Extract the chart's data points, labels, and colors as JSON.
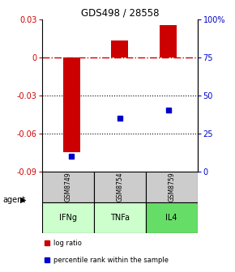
{
  "title": "GDS498 / 28558",
  "samples": [
    "GSM8749",
    "GSM8754",
    "GSM8759"
  ],
  "agents": [
    "IFNg",
    "TNFa",
    "IL4"
  ],
  "log_ratios": [
    -0.075,
    0.013,
    0.025
  ],
  "percentile_ranks": [
    10,
    35,
    40
  ],
  "ylim_left": [
    -0.09,
    0.03
  ],
  "ylim_right": [
    0,
    100
  ],
  "left_yticks": [
    0.03,
    0,
    -0.03,
    -0.06,
    -0.09
  ],
  "left_ytick_labels": [
    "0.03",
    "0",
    "-0.03",
    "-0.06",
    "-0.09"
  ],
  "right_yticks": [
    100,
    75,
    50,
    25,
    0
  ],
  "right_ytick_labels": [
    "100%",
    "75",
    "50",
    "25",
    "0"
  ],
  "bar_color": "#cc0000",
  "square_color": "#0000cc",
  "zero_line_color": "#cc0000",
  "grid_color": "#000000",
  "sample_bg": "#cccccc",
  "agent_colors": [
    "#ccffcc",
    "#ccffcc",
    "#66dd66"
  ],
  "bar_width": 0.35,
  "legend_red_label": "log ratio",
  "legend_blue_label": "percentile rank within the sample",
  "figsize": [
    2.9,
    3.36
  ],
  "dpi": 100
}
